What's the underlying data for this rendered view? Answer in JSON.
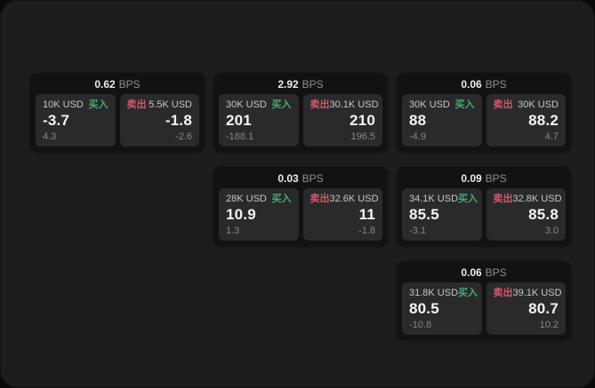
{
  "labels": {
    "bps_suffix": "BPS",
    "buy": "买入",
    "sell": "卖出"
  },
  "colors": {
    "buy_green": "#3fae6e",
    "sell_red": "#d8566a",
    "window_bg": "#1d1d1f",
    "card_bg": "#121213",
    "panel_bg": "#2a2a2c"
  },
  "cards": [
    {
      "col": 1,
      "row": 1,
      "bps": "0.62",
      "buy": {
        "amount": "10K USD",
        "price": "-3.7",
        "delta": "4.3"
      },
      "sell": {
        "amount": "5.5K USD",
        "price": "-1.8",
        "delta": "-2.6"
      }
    },
    {
      "col": 2,
      "row": 1,
      "bps": "2.92",
      "buy": {
        "amount": "30K USD",
        "price": "201",
        "delta": "-188.1"
      },
      "sell": {
        "amount": "30.1K USD",
        "price": "210",
        "delta": "196.5"
      }
    },
    {
      "col": 3,
      "row": 1,
      "bps": "0.06",
      "buy": {
        "amount": "30K USD",
        "price": "88",
        "delta": "-4.9"
      },
      "sell": {
        "amount": "30K USD",
        "price": "88.2",
        "delta": "4.7"
      }
    },
    {
      "col": 2,
      "row": 2,
      "bps": "0.03",
      "buy": {
        "amount": "28K USD",
        "price": "10.9",
        "delta": "1.3"
      },
      "sell": {
        "amount": "32.6K USD",
        "price": "11",
        "delta": "-1.8"
      }
    },
    {
      "col": 3,
      "row": 2,
      "bps": "0.09",
      "buy": {
        "amount": "34.1K USD",
        "price": "85.5",
        "delta": "-3.1"
      },
      "sell": {
        "amount": "32.8K USD",
        "price": "85.8",
        "delta": "3.0"
      }
    },
    {
      "col": 3,
      "row": 3,
      "bps": "0.06",
      "buy": {
        "amount": "31.8K USD",
        "price": "80.5",
        "delta": "-10.8"
      },
      "sell": {
        "amount": "39.1K USD",
        "price": "80.7",
        "delta": "10.2"
      }
    }
  ]
}
